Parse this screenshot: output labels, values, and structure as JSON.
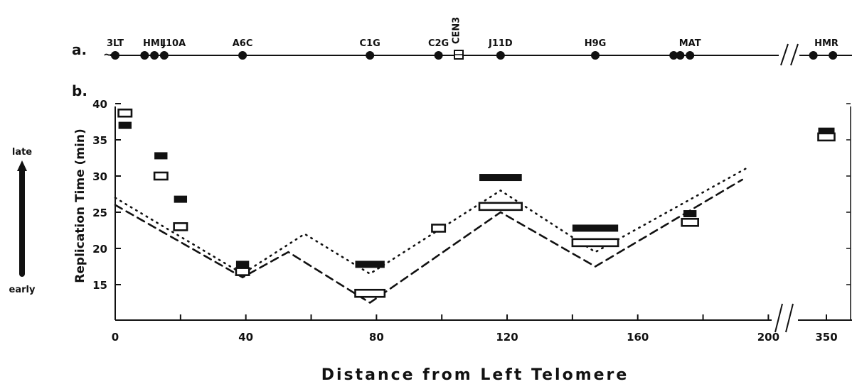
{
  "panel_labels": {
    "a": "a.",
    "b": "b."
  },
  "chromosome_map": {
    "markers": [
      {
        "label": "3LT",
        "kb": 0
      },
      {
        "label": "HML",
        "kb": 12
      },
      {
        "label": "J10A",
        "kb": 18
      },
      {
        "label": "A6C",
        "kb": 39
      },
      {
        "label": "C1G",
        "kb": 78
      },
      {
        "label": "C2G",
        "kb": 99
      },
      {
        "label": "CEN3",
        "kb": 104
      },
      {
        "label": "J11D",
        "kb": 118
      },
      {
        "label": "H9G",
        "kb": 147
      },
      {
        "label": "MAT",
        "kb": 176
      },
      {
        "label": "HMR",
        "kb": 350
      }
    ],
    "loci_kb": [
      0,
      9,
      12,
      15,
      39,
      78,
      99,
      118,
      147,
      171,
      173,
      176,
      346,
      352
    ]
  },
  "side_arrow": {
    "top": "late",
    "bottom": "early"
  },
  "chart_data": {
    "type": "scatter",
    "xlabel": "Distance from Left Telomere",
    "ylabel": "Replication Time (min)",
    "xticks": [
      "0",
      "40",
      "80",
      "120",
      "160",
      "200",
      "350"
    ],
    "yticks": [
      "15",
      "20",
      "25",
      "30",
      "35",
      "40"
    ],
    "ylim": [
      10,
      41
    ],
    "xlim": [
      0,
      200
    ],
    "axis_break": "200-350",
    "series": [
      {
        "style": "filled",
        "points": [
          {
            "x": 3,
            "y": 37,
            "w": 4
          },
          {
            "x": 14,
            "y": 32.8,
            "w": 4
          },
          {
            "x": 20,
            "y": 26.8,
            "w": 4
          },
          {
            "x": 39,
            "y": 17.8,
            "w": 4
          },
          {
            "x": 78,
            "y": 17.8,
            "w": 9
          },
          {
            "x": 99,
            "y": 22.8,
            "w": 4
          },
          {
            "x": 118,
            "y": 29.8,
            "w": 13
          },
          {
            "x": 147,
            "y": 22.8,
            "w": 14
          },
          {
            "x": 176,
            "y": 24.8,
            "w": 4
          },
          {
            "x": 350,
            "y": 36.2,
            "w": 5
          }
        ]
      },
      {
        "style": "open",
        "points": [
          {
            "x": 3,
            "y": 38.7,
            "w": 4
          },
          {
            "x": 14,
            "y": 30,
            "w": 4
          },
          {
            "x": 20,
            "y": 23,
            "w": 4
          },
          {
            "x": 39,
            "y": 16.8,
            "w": 4
          },
          {
            "x": 78,
            "y": 13.8,
            "w": 9
          },
          {
            "x": 99,
            "y": 22.8,
            "w": 4
          },
          {
            "x": 118,
            "y": 25.8,
            "w": 13
          },
          {
            "x": 147,
            "y": 20.8,
            "w": 14
          },
          {
            "x": 176,
            "y": 23.6,
            "w": 5
          },
          {
            "x": 350,
            "y": 35.4,
            "w": 5
          }
        ]
      },
      {
        "style": "dotted",
        "line": [
          [
            0,
            27
          ],
          [
            39,
            16.5
          ],
          [
            58,
            22
          ],
          [
            78,
            16.5
          ],
          [
            118,
            28
          ],
          [
            147,
            19.5
          ],
          [
            193,
            31
          ]
        ]
      },
      {
        "style": "dashed",
        "line": [
          [
            0,
            26
          ],
          [
            39,
            16
          ],
          [
            53,
            19.5
          ],
          [
            78,
            12.5
          ],
          [
            118,
            25
          ],
          [
            147,
            17.5
          ],
          [
            192,
            29.5
          ]
        ]
      }
    ]
  }
}
